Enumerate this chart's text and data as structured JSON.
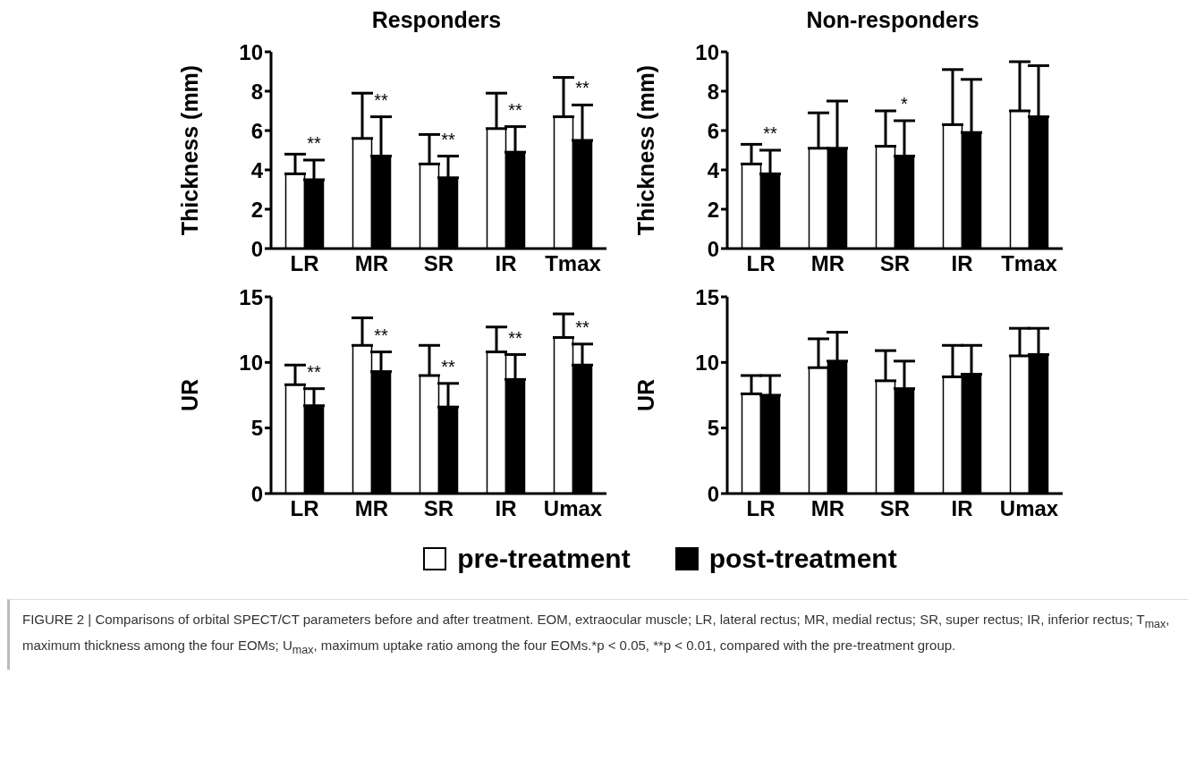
{
  "chart_data": [
    {
      "type": "bar",
      "title": "Responders",
      "ylabel": "Thickness (mm)",
      "categories": [
        "LR",
        "MR",
        "SR",
        "IR",
        "Tmax"
      ],
      "ylim": [
        0,
        10
      ],
      "yticks": [
        0,
        2,
        4,
        6,
        8,
        10
      ],
      "legend": "bottom",
      "series": [
        {
          "name": "pre-treatment",
          "color": "#ffffff",
          "values": [
            3.8,
            5.6,
            4.3,
            6.1,
            6.7
          ],
          "errors": [
            [
              3.8,
              4.8
            ],
            [
              5.6,
              7.9
            ],
            [
              4.3,
              5.8
            ],
            [
              6.1,
              7.9
            ],
            [
              6.7,
              8.7
            ]
          ]
        },
        {
          "name": "post-treatment",
          "color": "#000000",
          "values": [
            3.5,
            4.7,
            3.6,
            4.9,
            5.5
          ],
          "errors": [
            [
              3.5,
              4.5
            ],
            [
              4.7,
              6.7
            ],
            [
              3.6,
              4.7
            ],
            [
              4.9,
              6.2
            ],
            [
              5.5,
              7.3
            ]
          ]
        }
      ],
      "annotations": [
        {
          "text": "**",
          "x": "LR",
          "y": 4.5
        },
        {
          "text": "**",
          "x": "MR",
          "y": 6.7
        },
        {
          "text": "**",
          "x": "SR",
          "y": 4.7
        },
        {
          "text": "**",
          "x": "IR",
          "y": 6.2
        },
        {
          "text": "**",
          "x": "Tmax",
          "y": 7.3
        }
      ]
    },
    {
      "type": "bar",
      "title": "Non-responders",
      "ylabel": "Thickness (mm)",
      "categories": [
        "LR",
        "MR",
        "SR",
        "IR",
        "Tmax"
      ],
      "ylim": [
        0,
        10
      ],
      "yticks": [
        0,
        2,
        4,
        6,
        8,
        10
      ],
      "series": [
        {
          "name": "pre-treatment",
          "color": "#ffffff",
          "values": [
            4.3,
            5.1,
            5.2,
            6.3,
            7.0
          ],
          "errors": [
            [
              4.3,
              5.3
            ],
            [
              5.1,
              6.9
            ],
            [
              5.2,
              7.0
            ],
            [
              6.3,
              9.1
            ],
            [
              7.0,
              9.5
            ]
          ]
        },
        {
          "name": "post-treatment",
          "color": "#000000",
          "values": [
            3.8,
            5.1,
            4.7,
            5.9,
            6.7
          ],
          "errors": [
            [
              3.8,
              5.0
            ],
            [
              5.1,
              7.5
            ],
            [
              4.7,
              6.5
            ],
            [
              5.9,
              8.6
            ],
            [
              6.7,
              9.3
            ]
          ]
        }
      ],
      "annotations": [
        {
          "text": "**",
          "x": "LR",
          "y": 5.0
        },
        {
          "text": "*",
          "x": "SR",
          "y": 6.5
        }
      ]
    },
    {
      "type": "bar",
      "ylabel": "UR",
      "categories": [
        "LR",
        "MR",
        "SR",
        "IR",
        "Umax"
      ],
      "ylim": [
        0,
        15
      ],
      "yticks": [
        0,
        5,
        10,
        15
      ],
      "series": [
        {
          "name": "pre-treatment",
          "color": "#ffffff",
          "values": [
            8.3,
            11.3,
            9.0,
            10.8,
            11.9
          ],
          "errors": [
            [
              8.3,
              9.8
            ],
            [
              11.3,
              13.4
            ],
            [
              9.0,
              11.3
            ],
            [
              10.8,
              12.7
            ],
            [
              11.9,
              13.7
            ]
          ]
        },
        {
          "name": "post-treatment",
          "color": "#000000",
          "values": [
            6.7,
            9.3,
            6.6,
            8.7,
            9.8
          ],
          "errors": [
            [
              6.7,
              8.0
            ],
            [
              9.3,
              10.8
            ],
            [
              6.6,
              8.4
            ],
            [
              8.7,
              10.6
            ],
            [
              9.8,
              11.4
            ]
          ]
        }
      ],
      "annotations": [
        {
          "text": "**",
          "x": "LR",
          "y": 8.0
        },
        {
          "text": "**",
          "x": "MR",
          "y": 10.8
        },
        {
          "text": "**",
          "x": "SR",
          "y": 8.4
        },
        {
          "text": "**",
          "x": "IR",
          "y": 10.6
        },
        {
          "text": "**",
          "x": "Umax",
          "y": 11.4
        }
      ]
    },
    {
      "type": "bar",
      "ylabel": "UR",
      "categories": [
        "LR",
        "MR",
        "SR",
        "IR",
        "Umax"
      ],
      "ylim": [
        0,
        15
      ],
      "yticks": [
        0,
        5,
        10,
        15
      ],
      "series": [
        {
          "name": "pre-treatment",
          "color": "#ffffff",
          "values": [
            7.6,
            9.6,
            8.6,
            8.9,
            10.5
          ],
          "errors": [
            [
              7.6,
              9.0
            ],
            [
              9.6,
              11.8
            ],
            [
              8.6,
              10.9
            ],
            [
              8.9,
              11.3
            ],
            [
              10.5,
              12.6
            ]
          ]
        },
        {
          "name": "post-treatment",
          "color": "#000000",
          "values": [
            7.5,
            10.1,
            8.0,
            9.1,
            10.6
          ],
          "errors": [
            [
              7.5,
              9.0
            ],
            [
              10.1,
              12.3
            ],
            [
              8.0,
              10.1
            ],
            [
              9.1,
              11.3
            ],
            [
              10.6,
              12.6
            ]
          ]
        }
      ],
      "annotations": [
        "FIGURE 2 | Comparisons of orbital SPECT/CT parameters before and after treatment. EOM, extraocular muscle; LR, lateral rectus; MR, medial rectus; SR, super rectus; IR, inferior rectus; T$_{max}$, maximum thickness among the four EOMs; U$_{max}$, maximum uptake ratio among the four EOMs.*p < 0.05, **p < 0.01, compared with the pre-treatment group."
      ]
    }
  ]
}
